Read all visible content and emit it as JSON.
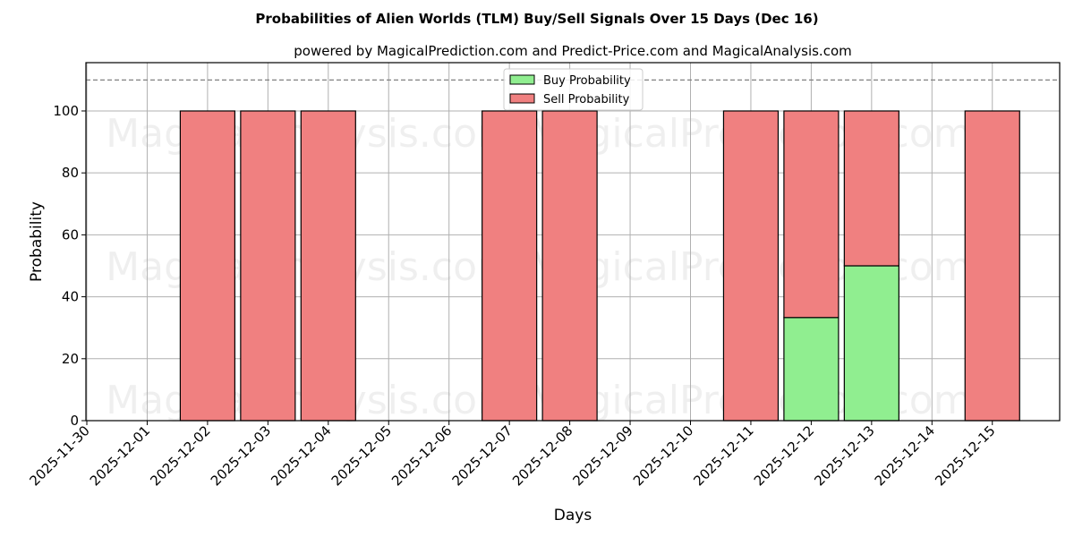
{
  "chart_data": {
    "type": "bar",
    "stacked": true,
    "title": "Probabilities of Alien Worlds (TLM) Buy/Sell Signals Over 15 Days (Dec 16)",
    "subtitle": "powered by MagicalPrediction.com and Predict-Price.com and MagicalAnalysis.com",
    "xlabel": "Days",
    "ylabel": "Probability",
    "ylim": [
      0,
      115.6
    ],
    "yticks": [
      0,
      20,
      40,
      60,
      80,
      100
    ],
    "xtick_labels": [
      "2025-11-30",
      "2025-12-01",
      "2025-12-02",
      "2025-12-03",
      "2025-12-04",
      "2025-12-05",
      "2025-12-06",
      "2025-12-07",
      "2025-12-08",
      "2025-12-09",
      "2025-12-10",
      "2025-12-11",
      "2025-12-12",
      "2025-12-13",
      "2025-12-14",
      "2025-12-15"
    ],
    "categories": [
      "2025-12-02",
      "2025-12-03",
      "2025-12-04",
      "2025-12-07",
      "2025-12-08",
      "2025-12-11",
      "2025-12-12",
      "2025-12-13",
      "2025-12-15"
    ],
    "series": [
      {
        "name": "Buy Probability",
        "color": "#90ee90",
        "values": [
          0,
          0,
          0,
          0,
          0,
          0,
          33.3,
          50,
          0
        ]
      },
      {
        "name": "Sell Probability",
        "color": "#f08080",
        "values": [
          100,
          100,
          100,
          100,
          100,
          100,
          66.7,
          50,
          100
        ]
      }
    ],
    "reference_line": {
      "y": 110,
      "style": "dashed",
      "color": "#808080"
    },
    "grid": true,
    "legend_position": "upper center",
    "watermarks": [
      "MagicalAnalysis.com",
      "MagicalPrediction.com"
    ]
  }
}
